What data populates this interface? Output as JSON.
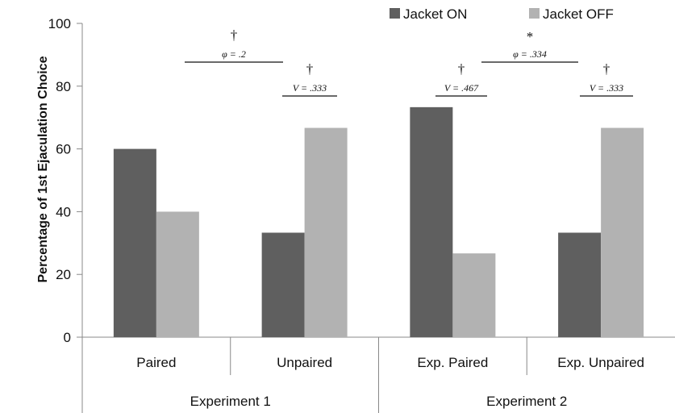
{
  "chart_data": {
    "type": "bar",
    "ylabel": "Percentage of 1st Ejaculation  Choice",
    "ylim": [
      0,
      100
    ],
    "yticks": [
      "0",
      "20",
      "40",
      "60",
      "80",
      "100"
    ],
    "categories": [
      "Paired",
      "Unpaired",
      "Exp. Paired",
      "Exp. Unpaired"
    ],
    "groups": [
      "Experiment 1",
      "Experiment 2"
    ],
    "series": [
      {
        "name": "Jacket ON",
        "color": "#5f5f5f",
        "values": [
          60,
          33.3,
          73.3,
          33.3
        ]
      },
      {
        "name": "Jacket OFF",
        "color": "#b2b2b2",
        "values": [
          40,
          66.7,
          26.7,
          66.7
        ]
      }
    ],
    "legend_position": "top-right",
    "annotations": [
      {
        "mark": "†",
        "stat": "V = .333"
      },
      {
        "mark": "†",
        "stat": "V = .467"
      },
      {
        "mark": "†",
        "stat": "V = .333"
      },
      {
        "mark": "†",
        "stat": "φ = .2"
      },
      {
        "mark": "*",
        "stat": "φ = .334"
      }
    ]
  }
}
